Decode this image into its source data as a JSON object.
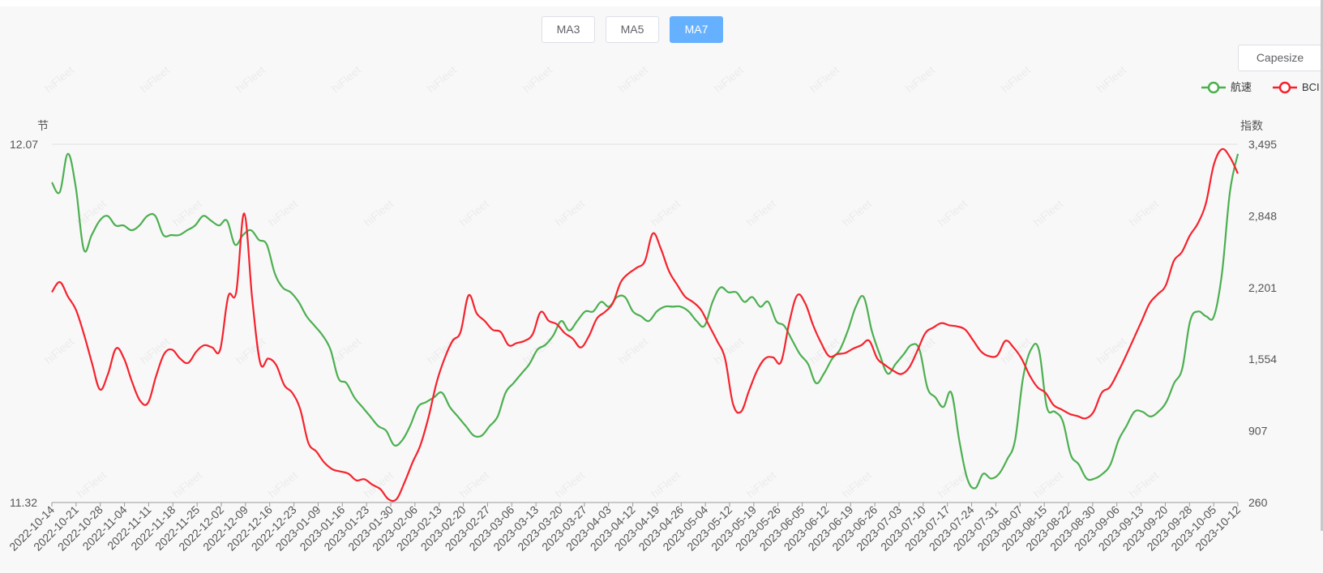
{
  "controls": {
    "ma_buttons": [
      {
        "label": "MA3",
        "active": false
      },
      {
        "label": "MA5",
        "active": false
      },
      {
        "label": "MA7",
        "active": true
      }
    ],
    "vessel_type": "Capesize"
  },
  "watermark": "hiFleet",
  "colors": {
    "speed": "#4caf50",
    "bci": "#f5222d",
    "active_button": "#66b1ff"
  },
  "chart_data": {
    "type": "line",
    "left_axis": {
      "unit": "节",
      "min": 11.32,
      "max": 12.07,
      "ticks": [
        "12.07",
        "11.32"
      ]
    },
    "right_axis": {
      "unit": "指数",
      "min": 260,
      "max": 3495,
      "ticks": [
        "3,495",
        "2,848",
        "2,201",
        "1,554",
        "907",
        "260"
      ]
    },
    "x_labels": [
      "2022-10-14",
      "2022-10-21",
      "2022-10-28",
      "2022-11-04",
      "2022-11-11",
      "2022-11-18",
      "2022-11-25",
      "2022-12-02",
      "2022-12-09",
      "2022-12-16",
      "2022-12-23",
      "2023-01-09",
      "2023-01-16",
      "2023-01-23",
      "2023-01-30",
      "2023-02-06",
      "2023-02-13",
      "2023-02-20",
      "2023-02-27",
      "2023-03-06",
      "2023-03-13",
      "2023-03-20",
      "2023-03-27",
      "2023-04-03",
      "2023-04-12",
      "2023-04-19",
      "2023-04-26",
      "2023-05-04",
      "2023-05-12",
      "2023-05-19",
      "2023-05-26",
      "2023-06-05",
      "2023-06-12",
      "2023-06-19",
      "2023-06-26",
      "2023-07-03",
      "2023-07-10",
      "2023-07-17",
      "2023-07-24",
      "2023-07-31",
      "2023-08-07",
      "2023-08-15",
      "2023-08-22",
      "2023-08-30",
      "2023-09-06",
      "2023-09-13",
      "2023-09-20",
      "2023-09-28",
      "2023-10-05",
      "2023-10-12"
    ],
    "legend_position": "top-right",
    "series": [
      {
        "name": "航速",
        "axis": "left",
        "values": [
          11.99,
          11.97,
          12.05,
          11.98,
          11.85,
          11.88,
          11.91,
          11.92,
          11.9,
          11.9,
          11.89,
          11.9,
          11.92,
          11.92,
          11.88,
          11.88,
          11.88,
          11.89,
          11.9,
          11.92,
          11.91,
          11.9,
          11.91,
          11.86,
          11.88,
          11.89,
          11.87,
          11.86,
          11.8,
          11.77,
          11.76,
          11.74,
          11.71,
          11.69,
          11.67,
          11.64,
          11.58,
          11.57,
          11.54,
          11.52,
          11.5,
          11.48,
          11.47,
          11.44,
          11.45,
          11.48,
          11.52,
          11.53,
          11.54,
          11.55,
          11.52,
          11.5,
          11.48,
          11.46,
          11.46,
          11.48,
          11.5,
          11.55,
          11.57,
          11.59,
          11.61,
          11.64,
          11.65,
          11.67,
          11.7,
          11.68,
          11.7,
          11.72,
          11.72,
          11.74,
          11.73,
          11.75,
          11.75,
          11.72,
          11.71,
          11.7,
          11.72,
          11.73,
          11.73,
          11.73,
          11.72,
          11.7,
          11.69,
          11.74,
          11.77,
          11.76,
          11.76,
          11.74,
          11.75,
          11.73,
          11.74,
          11.7,
          11.69,
          11.66,
          11.63,
          11.61,
          11.57,
          11.59,
          11.62,
          11.64,
          11.68,
          11.73,
          11.75,
          11.68,
          11.63,
          11.59,
          11.61,
          11.63,
          11.65,
          11.64,
          11.56,
          11.54,
          11.52,
          11.55,
          11.45,
          11.37,
          11.35,
          11.38,
          11.37,
          11.38,
          11.41,
          11.45,
          11.58,
          11.64,
          11.64,
          11.52,
          11.51,
          11.49,
          11.42,
          11.4,
          11.37,
          11.37,
          11.38,
          11.4,
          11.45,
          11.48,
          11.51,
          11.51,
          11.5,
          11.51,
          11.53,
          11.57,
          11.6,
          11.7,
          11.72,
          11.71,
          11.71,
          11.8,
          11.97,
          12.05
        ]
      },
      {
        "name": "BCI",
        "axis": "right",
        "values": [
          2160,
          2250,
          2120,
          2000,
          1780,
          1520,
          1280,
          1420,
          1650,
          1560,
          1350,
          1180,
          1160,
          1400,
          1600,
          1640,
          1560,
          1520,
          1620,
          1680,
          1660,
          1640,
          2120,
          2160,
          2870,
          2100,
          1520,
          1560,
          1500,
          1320,
          1250,
          1100,
          800,
          720,
          620,
          560,
          540,
          520,
          460,
          470,
          420,
          380,
          290,
          290,
          440,
          620,
          780,
          1030,
          1340,
          1560,
          1720,
          1800,
          2130,
          1970,
          1900,
          1820,
          1800,
          1680,
          1700,
          1720,
          1780,
          1980,
          1900,
          1870,
          1790,
          1740,
          1660,
          1760,
          1920,
          1980,
          2060,
          2250,
          2330,
          2380,
          2440,
          2690,
          2550,
          2350,
          2230,
          2120,
          2070,
          2000,
          1860,
          1720,
          1560,
          1150,
          1080,
          1270,
          1450,
          1560,
          1570,
          1530,
          1880,
          2130,
          2060,
          1860,
          1700,
          1580,
          1600,
          1610,
          1650,
          1680,
          1720,
          1560,
          1500,
          1450,
          1420,
          1480,
          1630,
          1790,
          1840,
          1880,
          1860,
          1850,
          1820,
          1720,
          1620,
          1580,
          1590,
          1720,
          1660,
          1560,
          1410,
          1300,
          1250,
          1140,
          1100,
          1060,
          1040,
          1020,
          1080,
          1250,
          1300,
          1430,
          1580,
          1740,
          1900,
          2060,
          2140,
          2220,
          2440,
          2520,
          2670,
          2780,
          2960,
          3310,
          3450,
          3380,
          3230
        ]
      }
    ]
  }
}
